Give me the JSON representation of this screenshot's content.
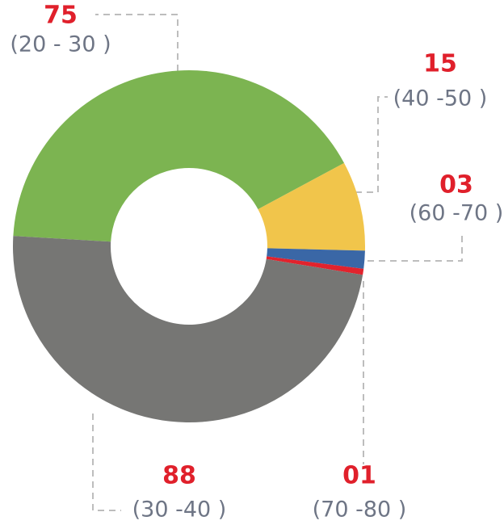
{
  "chart_data": {
    "type": "pie",
    "categories": [
      "(20 - 30 )",
      "(40 -50 )",
      "(60 -70 )",
      "(70 -80 )",
      "(30 -40 )"
    ],
    "values": [
      75,
      15,
      3,
      1,
      88
    ],
    "value_labels": [
      "75",
      "15",
      "03",
      "01",
      "88"
    ],
    "colors": [
      "#7cb451",
      "#f1c54b",
      "#3a67a6",
      "#e1232d",
      "#767674"
    ]
  }
}
